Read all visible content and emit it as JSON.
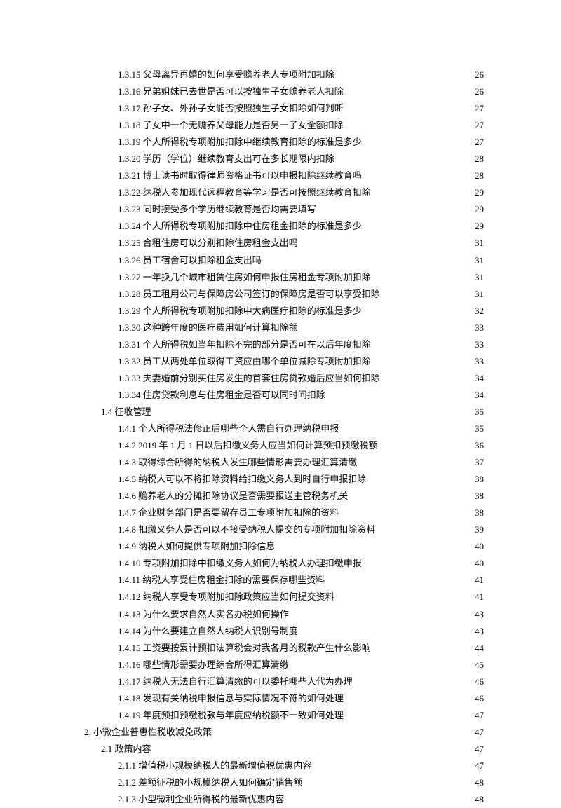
{
  "toc": [
    {
      "level": 3,
      "label": "1.3.15 父母离异再婚的如何享受赡养老人专项附加扣除",
      "page": "26"
    },
    {
      "level": 3,
      "label": "1.3.16 兄弟姐妹已去世是否可以按独生子女赡养老人扣除",
      "page": "26"
    },
    {
      "level": 3,
      "label": "1.3.17 孙子女、外孙子女能否按照独生子女扣除如何判断",
      "page": "27"
    },
    {
      "level": 3,
      "label": "1.3.18 子女中一个无赡养父母能力是否另一子女全额扣除",
      "page": "27"
    },
    {
      "level": 3,
      "label": "1.3.19 个人所得税专项附加扣除中继续教育扣除的标准是多少",
      "page": "27"
    },
    {
      "level": 3,
      "label": "1.3.20 学历（学位）继续教育支出可在多长期限内扣除",
      "page": "28"
    },
    {
      "level": 3,
      "label": "1.3.21 博士读书时取得律师资格证书可以申报扣除继续教育吗",
      "page": "28"
    },
    {
      "level": 3,
      "label": "1.3.22 纳税人参加现代远程教育等学习是否可按照继续教育扣除",
      "page": "29"
    },
    {
      "level": 3,
      "label": "1.3.23 同时接受多个学历继续教育是否均需要填写",
      "page": "29"
    },
    {
      "level": 3,
      "label": "1.3.24 个人所得税专项附加扣除中住房租金扣除的标准是多少",
      "page": "29"
    },
    {
      "level": 3,
      "label": "1.3.25 合租住房可以分别扣除住房租金支出吗",
      "page": "31"
    },
    {
      "level": 3,
      "label": "1.3.26 员工宿舍可以扣除租金支出吗",
      "page": "31"
    },
    {
      "level": 3,
      "label": "1.3.27 一年换几个城市租赁住房如何申报住房租金专项附加扣除",
      "page": "31"
    },
    {
      "level": 3,
      "label": "1.3.28 员工租用公司与保障房公司签订的保障房是否可以享受扣除",
      "page": "31"
    },
    {
      "level": 3,
      "label": "1.3.29 个人所得税专项附加扣除中大病医疗扣除的标准是多少",
      "page": "32"
    },
    {
      "level": 3,
      "label": "1.3.30 这种跨年度的医疗费用如何计算扣除额",
      "page": "33"
    },
    {
      "level": 3,
      "label": "1.3.31  个人所得税如当年扣除不完的部分是否可在以后年度扣除",
      "page": "33"
    },
    {
      "level": 3,
      "label": "1.3.32 员工从两处单位取得工资应由哪个单位减除专项附加扣除",
      "page": "33"
    },
    {
      "level": 3,
      "label": "1.3.33 夫妻婚前分别买住房发生的首套住房贷款婚后应当如何扣除",
      "page": "34"
    },
    {
      "level": 3,
      "label": "1.3.34  住房贷款利息与住房租金是否可以同时间扣除",
      "page": "34"
    },
    {
      "level": 2,
      "label": "1.4 征收管理",
      "page": "35"
    },
    {
      "level": 3,
      "label": "1.4.1 个人所得税法修正后哪些个人需自行办理纳税申报",
      "page": "35"
    },
    {
      "level": 3,
      "label": "1.4.2 2019 年 1 月 1 日以后扣缴义务人应当如何计算预扣预缴税额",
      "page": "36"
    },
    {
      "level": 3,
      "label": "1.4.3 取得综合所得的纳税人发生哪些情形需要办理汇算清缴",
      "page": "37"
    },
    {
      "level": 3,
      "label": "1.4.5 纳税人可以不将扣除资料给扣缴义务人到时自行申报扣除",
      "page": "38"
    },
    {
      "level": 3,
      "label": "1.4.6 赡养老人的分摊扣除协议是否需要报送主管税务机关",
      "page": "38"
    },
    {
      "level": 3,
      "label": "1.4.7 企业财务部门是否要留存员工专项附加扣除的资料",
      "page": "38"
    },
    {
      "level": 3,
      "label": "1.4.8 扣缴义务人是否可以不接受纳税人提交的专项附加扣除资料",
      "page": "39"
    },
    {
      "level": 3,
      "label": "1.4.9 纳税人如何提供专项附加扣除信息",
      "page": "40"
    },
    {
      "level": 3,
      "label": "1.4.10 专项附加扣除中扣缴义务人如何为纳税人办理扣缴申报",
      "page": "40"
    },
    {
      "level": 3,
      "label": "1.4.11 纳税人享受住房租金扣除的需要保存哪些资料",
      "page": "41"
    },
    {
      "level": 3,
      "label": "1.4.12 纳税人享受专项附加扣除政策应当如何提交资料",
      "page": "41"
    },
    {
      "level": 3,
      "label": "1.4.13 为什么要求自然人实名办税如何操作",
      "page": "43"
    },
    {
      "level": 3,
      "label": "1.4.14 为什么要建立自然人纳税人识别号制度",
      "page": "43"
    },
    {
      "level": 3,
      "label": "1.4.15 工资要按累计预扣法算税会对我各月的税款产生什么影响",
      "page": "44"
    },
    {
      "level": 3,
      "label": "1.4.16 哪些情形需要办理综合所得汇算清缴",
      "page": "45"
    },
    {
      "level": 3,
      "label": "1.4.17 纳税人无法自行汇算清缴的可以委托哪些人代为办理",
      "page": "46"
    },
    {
      "level": 3,
      "label": "1.4.18 发现有关纳税申报信息与实际情况不符的如何处理",
      "page": "46"
    },
    {
      "level": 3,
      "label": "1.4.19 年度预扣预缴税款与年度应纳税额不一致如何处理",
      "page": "47"
    },
    {
      "level": 1,
      "label": "2.  小微企业普惠性税收减免政策",
      "page": "47"
    },
    {
      "level": 2,
      "label": "2.1 政策内容",
      "page": "47"
    },
    {
      "level": 3,
      "label": "2.1.1 增值税小规模纳税人的最新增值税优惠内容",
      "page": "47"
    },
    {
      "level": 3,
      "label": "2.1.2 差额征税的小规模纳税人如何确定销售额",
      "page": "48"
    },
    {
      "level": 3,
      "label": "2.1.3 小型微利企业所得税的最新优惠内容",
      "page": "48"
    }
  ]
}
